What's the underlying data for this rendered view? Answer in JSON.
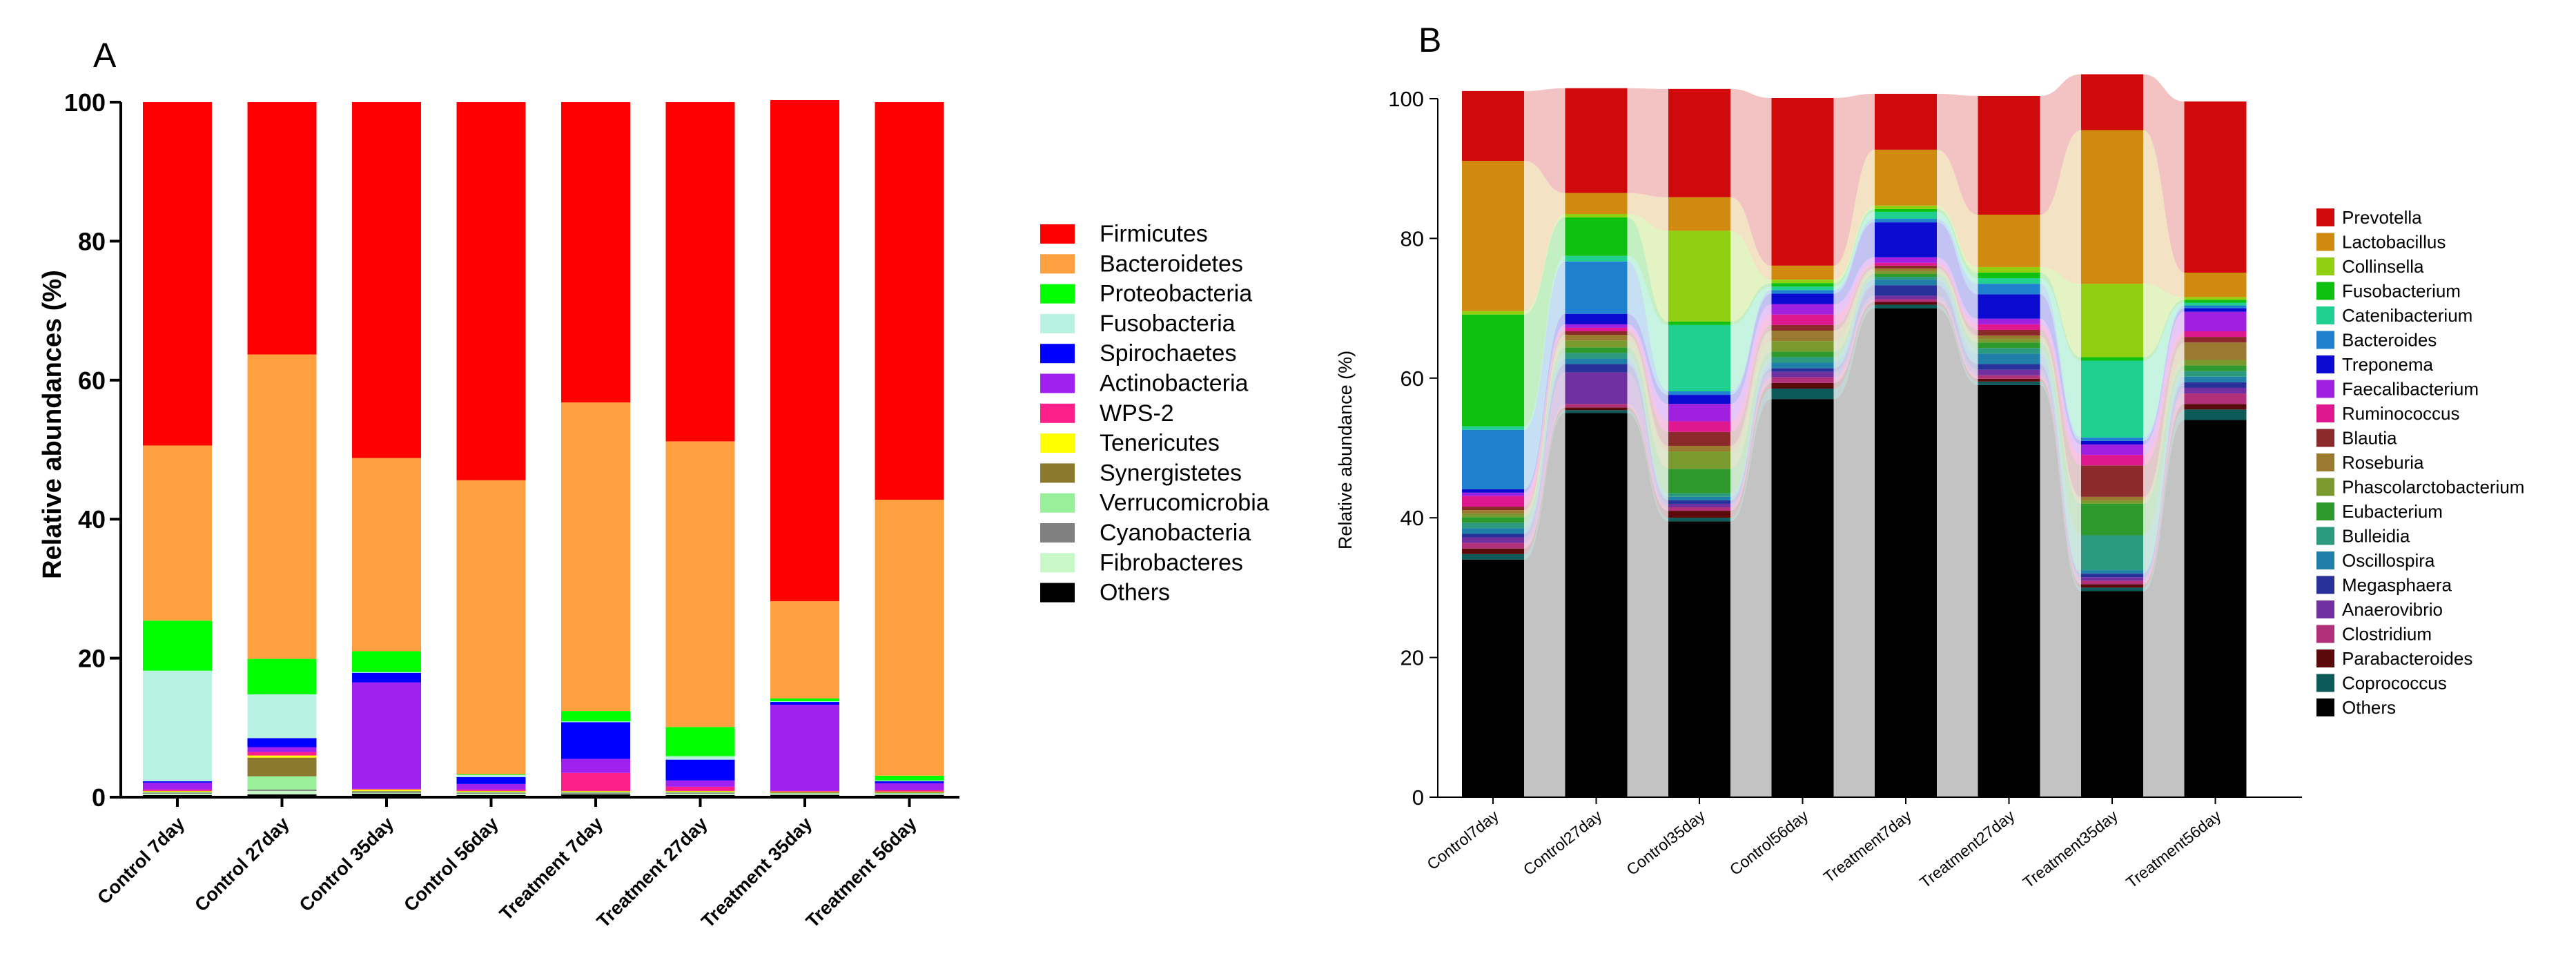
{
  "panels": [
    {
      "letter": "A"
    },
    {
      "letter": "B"
    }
  ],
  "chart_data": [
    {
      "type": "bar",
      "stacked": true,
      "panel": "A",
      "ylabel": "Relative abundances (%)",
      "ylim": [
        0,
        100
      ],
      "yticks": [
        0,
        20,
        40,
        60,
        80,
        100
      ],
      "categories": [
        "Control 7day",
        "Control 27day",
        "Control 35day",
        "Control 56day",
        "Treatment 7day",
        "Treatment 27day",
        "Treatment 35day",
        "Treatment 56day"
      ],
      "series": [
        {
          "name": "Others",
          "color": "#000000",
          "values": [
            0.3,
            0.4,
            0.5,
            0.3,
            0.4,
            0.3,
            0.3,
            0.3
          ]
        },
        {
          "name": "Fibrobacteres",
          "color": "#c8f7c8",
          "values": [
            0.2,
            0.5,
            0.1,
            0.2,
            0.1,
            0.2,
            0.1,
            0.1
          ]
        },
        {
          "name": "Cyanobacteria",
          "color": "#808080",
          "values": [
            0.1,
            0.2,
            0.1,
            0.1,
            0.1,
            0.1,
            0.1,
            0.1
          ]
        },
        {
          "name": "Verrucomicrobia",
          "color": "#9af09a",
          "values": [
            0.1,
            1.9,
            0.1,
            0.1,
            0.1,
            0.1,
            0.1,
            0.1
          ]
        },
        {
          "name": "Synergistetes",
          "color": "#8b7a2e",
          "values": [
            0.1,
            2.7,
            0.1,
            0.1,
            0.1,
            0.1,
            0.1,
            0.1
          ]
        },
        {
          "name": "Tenericutes",
          "color": "#ffff00",
          "values": [
            0.1,
            0.3,
            0.2,
            0.1,
            0.1,
            0.1,
            0.1,
            0.1
          ]
        },
        {
          "name": "WPS-2",
          "color": "#ff1f8a",
          "values": [
            0.2,
            0.5,
            0.1,
            0.2,
            2.6,
            0.6,
            0.1,
            0.2
          ]
        },
        {
          "name": "Actinobacteria",
          "color": "#a020f0",
          "values": [
            1.0,
            0.7,
            15.3,
            0.8,
            2.0,
            0.9,
            12.4,
            1.0
          ]
        },
        {
          "name": "Spirochaetes",
          "color": "#0000ff",
          "values": [
            0.2,
            1.3,
            1.4,
            1.0,
            5.3,
            3.0,
            0.4,
            0.3
          ]
        },
        {
          "name": "Fusobacteria",
          "color": "#b9f2e2",
          "values": [
            15.9,
            6.3,
            0.1,
            0.3,
            0.1,
            0.5,
            0.1,
            0.1
          ]
        },
        {
          "name": "Proteobacteria",
          "color": "#00ff00",
          "values": [
            7.2,
            5.1,
            3.0,
            0.1,
            1.5,
            4.2,
            0.4,
            0.7
          ]
        },
        {
          "name": "Bacteroidetes",
          "color": "#ffa040",
          "values": [
            25.2,
            43.8,
            27.8,
            42.3,
            44.4,
            41.1,
            14.0,
            39.7
          ]
        },
        {
          "name": "Firmicutes",
          "color": "#ff0000",
          "values": [
            49.4,
            36.3,
            51.2,
            54.4,
            43.2,
            48.8,
            72.1,
            57.2
          ]
        }
      ],
      "legend": [
        "Firmicutes",
        "Bacteroidetes",
        "Proteobacteria",
        "Fusobacteria",
        "Spirochaetes",
        "Actinobacteria",
        "WPS-2",
        "Tenericutes",
        "Synergistetes",
        "Verrucomicrobia",
        "Cyanobacteria",
        "Fibrobacteres",
        "Others"
      ],
      "legend_position": "right"
    },
    {
      "type": "bar",
      "stacked": true,
      "alluvial": true,
      "panel": "B",
      "ylabel": "Relative abundance (%)",
      "ylim": [
        0,
        100
      ],
      "yticks": [
        0,
        20,
        40,
        60,
        80,
        100
      ],
      "categories": [
        "Control7day",
        "Control27day",
        "Control35day",
        "Control56day",
        "Treatment7day",
        "Treatment27day",
        "Treatment35day",
        "Treatment56day"
      ],
      "series": [
        {
          "name": "Others",
          "color": "#000000",
          "values": [
            34.0,
            55.0,
            39.5,
            57.0,
            70.0,
            59.0,
            29.5,
            54.0
          ]
        },
        {
          "name": "Coprococcus",
          "color": "#0d5a5a",
          "values": [
            0.8,
            0.4,
            0.5,
            1.5,
            0.5,
            0.5,
            0.5,
            1.5
          ]
        },
        {
          "name": "Parabacteroides",
          "color": "#5a0a0a",
          "values": [
            0.8,
            0.4,
            1.0,
            0.8,
            0.4,
            0.4,
            0.5,
            0.8
          ]
        },
        {
          "name": "Clostridium",
          "color": "#b0307a",
          "values": [
            0.8,
            0.5,
            0.5,
            0.8,
            0.4,
            0.5,
            0.5,
            1.5
          ]
        },
        {
          "name": "Anaerovibrio",
          "color": "#7030a0",
          "values": [
            0.8,
            4.5,
            0.5,
            0.8,
            0.5,
            0.8,
            0.5,
            0.8
          ]
        },
        {
          "name": "Megasphaera",
          "color": "#28309a",
          "values": [
            0.5,
            1.2,
            0.5,
            0.5,
            1.5,
            0.8,
            0.5,
            0.8
          ]
        },
        {
          "name": "Oscillospira",
          "color": "#1f7fa8",
          "values": [
            0.8,
            0.8,
            0.5,
            0.8,
            0.8,
            1.5,
            0.5,
            0.8
          ]
        },
        {
          "name": "Bulleidia",
          "color": "#2c9a7e",
          "values": [
            0.8,
            0.8,
            0.5,
            0.8,
            0.4,
            0.8,
            5.0,
            0.8
          ]
        },
        {
          "name": "Eubacterium",
          "color": "#2e9a2e",
          "values": [
            0.8,
            0.8,
            3.5,
            0.8,
            0.4,
            0.8,
            4.5,
            0.8
          ]
        },
        {
          "name": "Phascolarctobacterium",
          "color": "#7a9a30",
          "values": [
            0.5,
            1.0,
            2.5,
            1.5,
            0.4,
            0.5,
            0.5,
            0.8
          ]
        },
        {
          "name": "Roseburia",
          "color": "#9a7a30",
          "values": [
            0.5,
            0.8,
            0.8,
            1.5,
            0.4,
            0.5,
            0.5,
            2.5
          ]
        },
        {
          "name": "Blautia",
          "color": "#8a2a2a",
          "values": [
            0.5,
            0.5,
            2.0,
            0.8,
            0.4,
            0.8,
            4.5,
            0.8
          ]
        },
        {
          "name": "Ruminococcus",
          "color": "#e01890",
          "values": [
            1.5,
            0.5,
            1.5,
            1.5,
            0.4,
            0.8,
            1.5,
            0.8
          ]
        },
        {
          "name": "Faecalibacterium",
          "color": "#a020e0",
          "values": [
            0.5,
            0.5,
            2.5,
            1.5,
            0.8,
            0.8,
            1.5,
            2.8
          ]
        },
        {
          "name": "Treponema",
          "color": "#0a0ad0",
          "values": [
            0.5,
            1.5,
            1.3,
            1.5,
            5.0,
            3.5,
            0.5,
            0.5
          ]
        },
        {
          "name": "Bacteroides",
          "color": "#1f80d0",
          "values": [
            8.5,
            7.5,
            0.5,
            0.5,
            0.5,
            1.5,
            0.5,
            0.4
          ]
        },
        {
          "name": "Catenibacterium",
          "color": "#20d090",
          "values": [
            0.5,
            0.8,
            9.5,
            0.5,
            1.0,
            0.8,
            11.0,
            0.4
          ]
        },
        {
          "name": "Fusobacterium",
          "color": "#10c010",
          "values": [
            16.0,
            5.5,
            0.5,
            0.5,
            0.4,
            0.8,
            0.5,
            0.4
          ]
        },
        {
          "name": "Collinsella",
          "color": "#90d010",
          "values": [
            0.5,
            0.5,
            13.0,
            0.5,
            0.5,
            0.8,
            10.5,
            0.4
          ]
        },
        {
          "name": "Lactobacillus",
          "color": "#d08a10",
          "values": [
            21.5,
            3.0,
            4.8,
            2.0,
            8.0,
            7.5,
            22.0,
            3.5
          ]
        },
        {
          "name": "Prevotella",
          "color": "#d00a0a",
          "values": [
            10.0,
            15.0,
            15.5,
            24.0,
            8.0,
            17.0,
            8.0,
            24.5
          ]
        }
      ],
      "legend": [
        "Prevotella",
        "Lactobacillus",
        "Collinsella",
        "Fusobacterium",
        "Catenibacterium",
        "Bacteroides",
        "Treponema",
        "Faecalibacterium",
        "Ruminococcus",
        "Blautia",
        "Roseburia",
        "Phascolarctobacterium",
        "Eubacterium",
        "Bulleidia",
        "Oscillospira",
        "Megasphaera",
        "Anaerovibrio",
        "Clostridium",
        "Parabacteroides",
        "Coprococcus",
        "Others"
      ],
      "legend_position": "right"
    }
  ]
}
